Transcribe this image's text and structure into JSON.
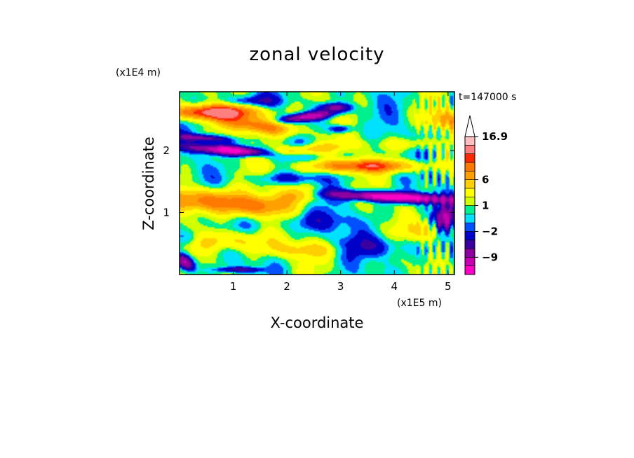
{
  "chart_data": {
    "type": "heatmap",
    "title": "zonal velocity",
    "xlabel": "X-coordinate",
    "ylabel": "Z-coordinate",
    "x_units": "(x1E5 m)",
    "y_units": "(x1E4 m)",
    "time_label": "t=147000 s",
    "xlim": [
      0,
      5.12
    ],
    "ylim": [
      0,
      2.95
    ],
    "x_ticks": [
      1,
      2,
      3,
      4,
      5
    ],
    "y_ticks": [
      1,
      2
    ],
    "colorbar": {
      "levels": [
        -15,
        -12,
        -9,
        -6,
        -4,
        -2,
        -1,
        0,
        1,
        2,
        4,
        6,
        8,
        10,
        12,
        16.9
      ],
      "colors": [
        "#ff00c8",
        "#c800b4",
        "#8c00a0",
        "#3c00a0",
        "#0000c8",
        "#0050ff",
        "#00e0ff",
        "#00f090",
        "#d0ff00",
        "#ffff00",
        "#ffd000",
        "#ffa000",
        "#ff7800",
        "#ff2800",
        "#ff8080",
        "#ffbebe"
      ],
      "extend": "max",
      "labels": [
        {
          "value": 16.9,
          "text": "16.9"
        },
        {
          "value": 6,
          "text": "6"
        },
        {
          "value": 1,
          "text": "1"
        },
        {
          "value": -2,
          "text": "−2"
        },
        {
          "value": -9,
          "text": "−9"
        }
      ]
    },
    "features": [
      {
        "x": 1.0,
        "z": 2.0,
        "sx": 0.55,
        "sz": 0.09,
        "a": -15,
        "rot": -0.12
      },
      {
        "x": 0.45,
        "z": 2.2,
        "sx": 0.35,
        "sz": 0.07,
        "a": -8,
        "rot": -0.1
      },
      {
        "x": 2.4,
        "z": 2.55,
        "sx": 0.35,
        "sz": 0.08,
        "a": -12,
        "rot": 0.2
      },
      {
        "x": 2.9,
        "z": 2.7,
        "sx": 0.2,
        "sz": 0.08,
        "a": -8,
        "rot": 0
      },
      {
        "x": 3.0,
        "z": 2.35,
        "sx": 0.15,
        "sz": 0.08,
        "a": -6,
        "rot": 0
      },
      {
        "x": 4.0,
        "z": 1.25,
        "sx": 0.75,
        "sz": 0.09,
        "a": -16,
        "rot": -0.07
      },
      {
        "x": 4.95,
        "z": 0.9,
        "sx": 0.12,
        "sz": 0.25,
        "a": -10,
        "rot": 0
      },
      {
        "x": 0.1,
        "z": 0.2,
        "sx": 0.1,
        "sz": 0.18,
        "a": -12,
        "rot": 0.5
      },
      {
        "x": 0.65,
        "z": 2.62,
        "sx": 0.6,
        "sz": 0.14,
        "a": 13,
        "rot": 0
      },
      {
        "x": 1.5,
        "z": 2.4,
        "sx": 0.5,
        "sz": 0.15,
        "a": 9,
        "rot": -0.2
      },
      {
        "x": 3.45,
        "z": 1.75,
        "sx": 0.75,
        "sz": 0.12,
        "a": 10,
        "rot": 0
      },
      {
        "x": 2.2,
        "z": 2.0,
        "sx": 0.6,
        "sz": 0.1,
        "a": 6,
        "rot": 0.15
      },
      {
        "x": 0.45,
        "z": 1.2,
        "sx": 0.5,
        "sz": 0.22,
        "a": 9,
        "rot": 0
      },
      {
        "x": 1.4,
        "z": 1.1,
        "sx": 0.45,
        "sz": 0.2,
        "a": 8,
        "rot": 0
      },
      {
        "x": 2.2,
        "z": 1.3,
        "sx": 0.25,
        "sz": 0.15,
        "a": 5,
        "rot": 0
      },
      {
        "x": 4.95,
        "z": 2.5,
        "sx": 0.25,
        "sz": 0.2,
        "a": 6,
        "rot": 0
      },
      {
        "x": 1.0,
        "z": 0.55,
        "sx": 0.5,
        "sz": 0.18,
        "a": 5,
        "rot": 0
      },
      {
        "x": 2.3,
        "z": 0.4,
        "sx": 0.6,
        "sz": 0.15,
        "a": 4,
        "rot": 0
      },
      {
        "x": 1.3,
        "z": 2.8,
        "sx": 0.4,
        "sz": 0.1,
        "a": -4,
        "rot": 0
      },
      {
        "x": 2.0,
        "z": 1.55,
        "sx": 0.5,
        "sz": 0.1,
        "a": -3,
        "rot": 0
      },
      {
        "x": 2.5,
        "z": 0.85,
        "sx": 0.5,
        "sz": 0.2,
        "a": -3,
        "rot": 0
      },
      {
        "x": 3.6,
        "z": 0.45,
        "sx": 0.5,
        "sz": 0.2,
        "a": -4,
        "rot": 0
      },
      {
        "x": 0.2,
        "z": 0.6,
        "sx": 0.2,
        "sz": 0.15,
        "a": -3,
        "rot": 0
      },
      {
        "x": 4.6,
        "z": 0.7,
        "sx": 0.3,
        "sz": 0.2,
        "a": 4,
        "rot": 0
      },
      {
        "x": 4.3,
        "z": 2.1,
        "sx": 0.4,
        "sz": 0.12,
        "a": 3,
        "rot": 0
      },
      {
        "x": 1.1,
        "z": 0.08,
        "sx": 0.3,
        "sz": 0.05,
        "a": -6,
        "rot": 0
      }
    ]
  }
}
